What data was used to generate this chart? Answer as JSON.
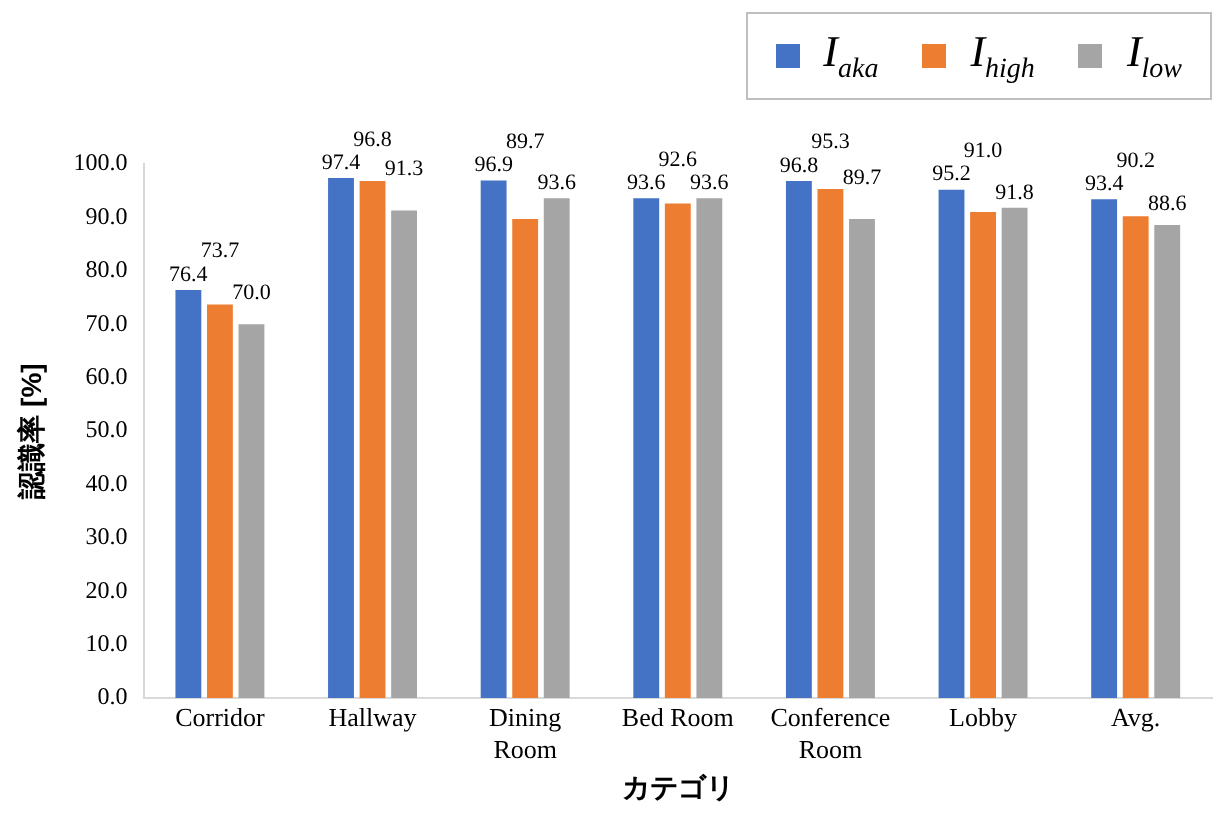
{
  "chart_data": {
    "type": "bar",
    "xlabel": "カテゴリ",
    "ylabel": "認識率 [%]",
    "categories": [
      "Corridor",
      "Hallway",
      "Dining Room",
      "Bed Room",
      "Conference Room",
      "Lobby",
      "Avg."
    ],
    "series": [
      {
        "name": "I$_{aka}$",
        "color": "#4472c4",
        "values": [
          76.4,
          97.4,
          96.9,
          93.6,
          96.8,
          95.2,
          93.4
        ],
        "value_labels": [
          "76.4",
          "97.4",
          "96.9",
          "93.6",
          "96.8",
          "95.2",
          "93.4"
        ]
      },
      {
        "name": "I$_{high}$",
        "color": "#ed7d31",
        "values": [
          73.7,
          96.8,
          89.7,
          92.6,
          95.3,
          91.0,
          90.2
        ],
        "value_labels": [
          "73.7",
          "96.8",
          "89.7",
          "92.6",
          "95.3",
          "91.0",
          "90.2"
        ]
      },
      {
        "name": "I$_{low}$",
        "color": "#a5a5a5",
        "values": [
          70.0,
          91.3,
          93.6,
          93.6,
          89.7,
          91.8,
          88.6
        ],
        "value_labels": [
          "70.0",
          "91.3",
          "93.6",
          "93.6",
          "89.7",
          "91.8",
          "88.6"
        ]
      }
    ],
    "ylim": [
      0,
      100
    ],
    "yticks": [
      {
        "value": 0,
        "label": "0.0"
      },
      {
        "value": 10,
        "label": "10.0"
      },
      {
        "value": 20,
        "label": "20.0"
      },
      {
        "value": 30,
        "label": "30.0"
      },
      {
        "value": 40,
        "label": "40.0"
      },
      {
        "value": 50,
        "label": "50.0"
      },
      {
        "value": 60,
        "label": "60.0"
      },
      {
        "value": 70,
        "label": "70.0"
      },
      {
        "value": 80,
        "label": "80.0"
      },
      {
        "value": 90,
        "label": "90.0"
      },
      {
        "value": 100,
        "label": "100.0"
      }
    ],
    "grid": false,
    "legend": "top right"
  }
}
